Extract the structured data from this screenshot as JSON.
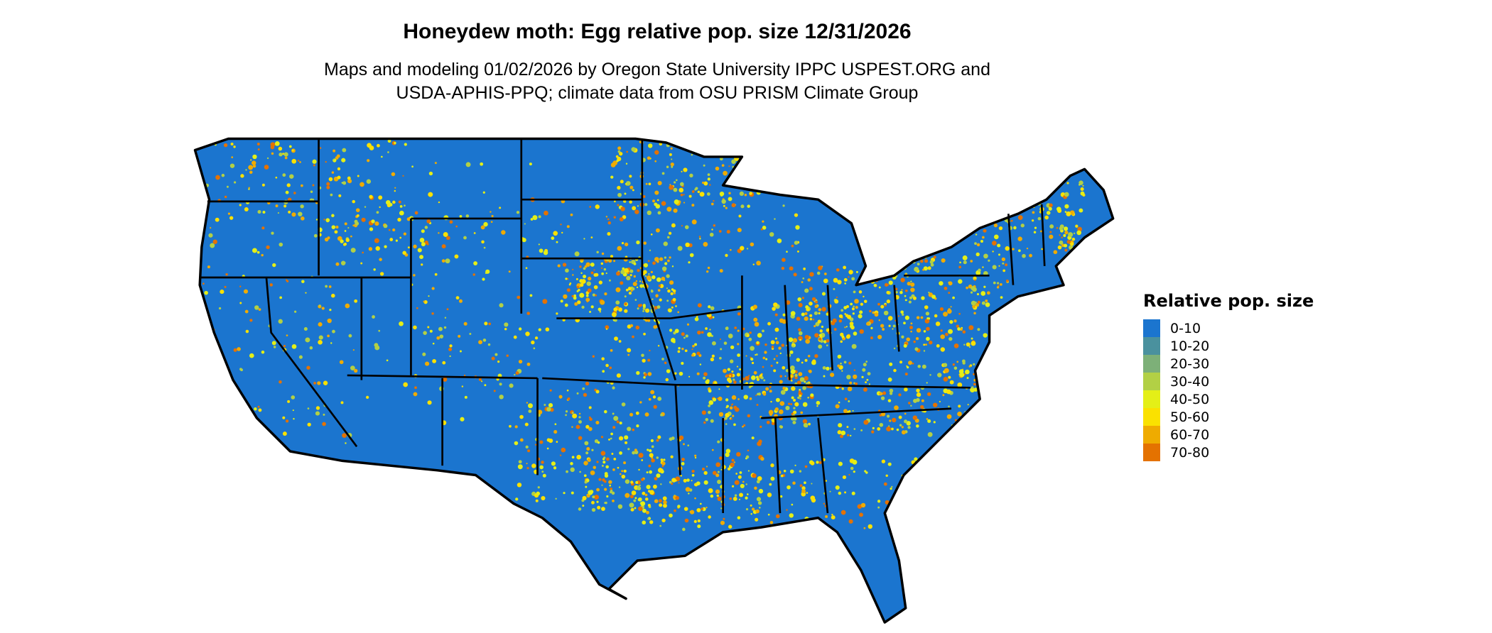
{
  "title": "Honeydew moth: Egg relative pop. size 12/31/2026",
  "subtitle_line1": "Maps and modeling 01/02/2026 by Oregon State University IPPC USPEST.ORG and",
  "subtitle_line2": "USDA-APHIS-PPQ; climate data from OSU PRISM Climate Group",
  "legend": {
    "title": "Relative pop. size",
    "items": [
      {
        "label": "0-10",
        "color": "#1b75cf"
      },
      {
        "label": "10-20",
        "color": "#4a919e"
      },
      {
        "label": "20-30",
        "color": "#7db078"
      },
      {
        "label": "30-40",
        "color": "#b2d045"
      },
      {
        "label": "40-50",
        "color": "#e4ef17"
      },
      {
        "label": "50-60",
        "color": "#fae100"
      },
      {
        "label": "60-70",
        "color": "#efab00"
      },
      {
        "label": "70-80",
        "color": "#e47200"
      }
    ]
  },
  "map": {
    "region": "contiguous United States",
    "base_color": "#1b75cf",
    "border_color": "#000000"
  }
}
